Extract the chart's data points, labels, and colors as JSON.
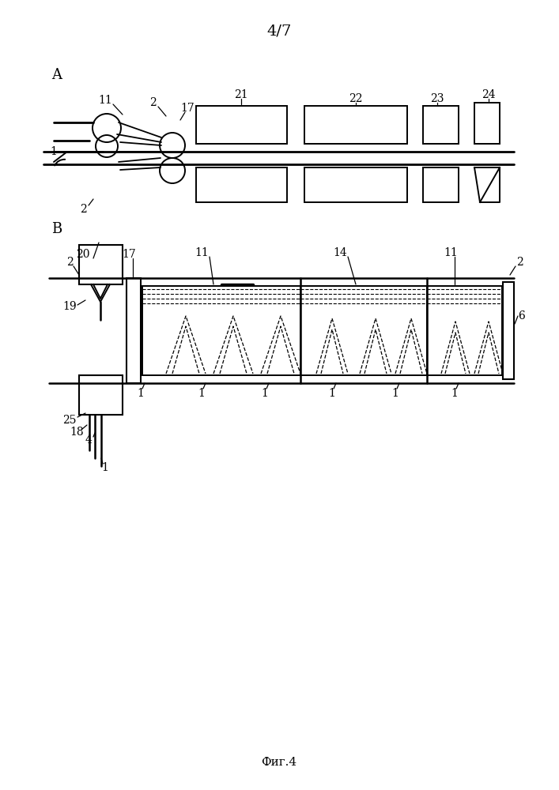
{
  "title": "4/7",
  "fig_label": "Фиг.4",
  "bg_color": "#ffffff",
  "line_color": "#000000",
  "fig_A_label": "A",
  "fig_B_label": "B"
}
